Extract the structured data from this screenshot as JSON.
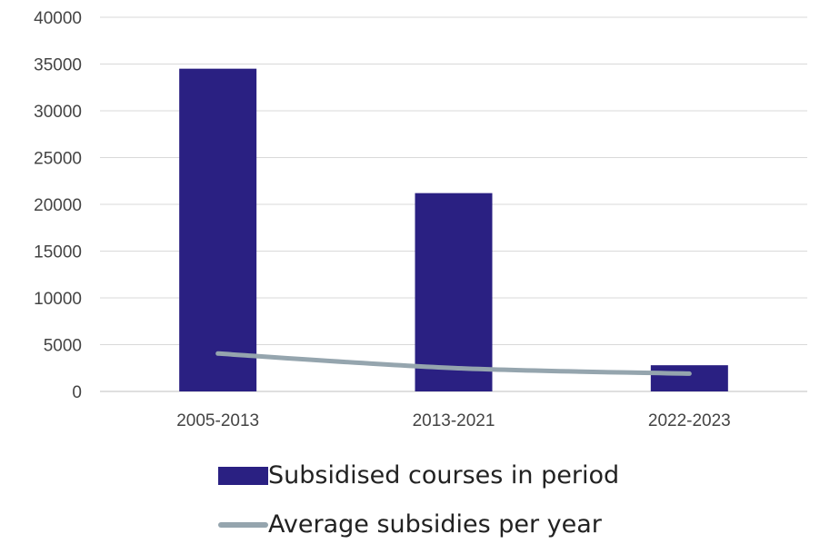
{
  "chart_data": {
    "type": "bar",
    "categories": [
      "2005-2013",
      "2013-2021",
      "2022-2023"
    ],
    "series": [
      {
        "name": "Subsidised courses in period",
        "kind": "bar",
        "color": "#2a2082",
        "values": [
          34500,
          21200,
          2800
        ]
      },
      {
        "name": "Average subsidies per year",
        "kind": "line",
        "color": "#95a5ae",
        "values": [
          4050,
          2500,
          1900
        ]
      }
    ],
    "ylim": [
      0,
      40000
    ],
    "yticks": [
      0,
      5000,
      10000,
      15000,
      20000,
      25000,
      30000,
      35000,
      40000
    ],
    "grid": true,
    "legend_position": "bottom"
  },
  "legend": {
    "bar_label": "Subsidised courses in period",
    "line_label": "Average subsidies per year"
  }
}
